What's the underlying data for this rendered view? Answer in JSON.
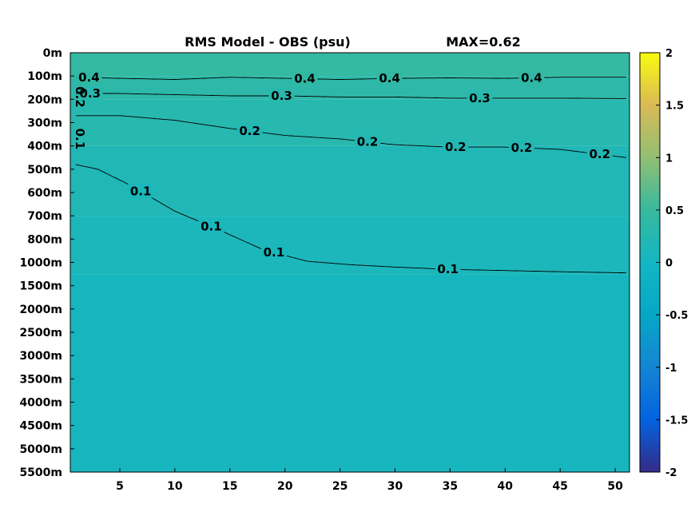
{
  "chart_data": {
    "type": "heatmap",
    "title": "RMS Model - OBS (psu)",
    "annotation": "MAX=0.62",
    "xlabel": "",
    "ylabel": "",
    "x_ticks": [
      "5",
      "10",
      "15",
      "20",
      "25",
      "30",
      "35",
      "40",
      "45",
      "50"
    ],
    "x_range": [
      0.5,
      51.3
    ],
    "depth_levels": [
      "0m",
      "100m",
      "200m",
      "300m",
      "400m",
      "500m",
      "600m",
      "700m",
      "800m",
      "1000m",
      "1500m",
      "2000m",
      "2500m",
      "3000m",
      "3500m",
      "4000m",
      "4500m",
      "5000m",
      "5500m"
    ],
    "colorbar": {
      "ticks": [
        "2",
        "1.5",
        "1",
        "0.5",
        "0",
        "-0.5",
        "-1",
        "-1.5",
        "-2"
      ],
      "range": [
        -2,
        2
      ],
      "colormap": "parula"
    },
    "contours": [
      {
        "level": 0.4,
        "label": "0.4",
        "points": [
          [
            1,
            1.05
          ],
          [
            5,
            1.1
          ],
          [
            10,
            1.15
          ],
          [
            15,
            1.05
          ],
          [
            20,
            1.1
          ],
          [
            25,
            1.15
          ],
          [
            30,
            1.1
          ],
          [
            35,
            1.08
          ],
          [
            40,
            1.1
          ],
          [
            45,
            1.05
          ],
          [
            51,
            1.05
          ]
        ],
        "label_at": [
          2.2,
          21.8,
          29.5,
          42.4
        ]
      },
      {
        "level": 0.3,
        "label": "0.3",
        "points": [
          [
            1,
            1.75
          ],
          [
            5,
            1.75
          ],
          [
            10,
            1.8
          ],
          [
            15,
            1.85
          ],
          [
            20,
            1.85
          ],
          [
            25,
            1.9
          ],
          [
            30,
            1.9
          ],
          [
            35,
            1.95
          ],
          [
            40,
            1.95
          ],
          [
            45,
            1.95
          ],
          [
            51,
            1.97
          ]
        ],
        "label_at": [
          2.3,
          19.7,
          37.7
        ]
      },
      {
        "level": 0.2,
        "label": "0.2",
        "points": [
          [
            1,
            2.7
          ],
          [
            5,
            2.7
          ],
          [
            10,
            2.9
          ],
          [
            15,
            3.25
          ],
          [
            20,
            3.55
          ],
          [
            25,
            3.7
          ],
          [
            30,
            3.95
          ],
          [
            35,
            4.05
          ],
          [
            40,
            4.05
          ],
          [
            45,
            4.15
          ],
          [
            51,
            4.5
          ]
        ],
        "label_at": [
          16.8,
          27.5,
          35.5,
          41.5,
          48.6
        ]
      },
      {
        "level": 0.1,
        "label": "0.1",
        "points": [
          [
            1,
            4.8
          ],
          [
            3,
            5.0
          ],
          [
            6,
            5.7
          ],
          [
            10,
            6.8
          ],
          [
            14,
            7.6
          ],
          [
            18,
            8.45
          ],
          [
            22,
            8.95
          ],
          [
            26,
            9.1
          ],
          [
            30,
            9.2
          ],
          [
            35,
            9.3
          ],
          [
            40,
            9.35
          ],
          [
            45,
            9.4
          ],
          [
            51,
            9.45
          ]
        ],
        "label_at": [
          6.9,
          13.3,
          19.0,
          34.8
        ]
      }
    ],
    "left_labels": [
      {
        "label": "0.2",
        "depth": 1.9
      },
      {
        "label": "0.1",
        "depth": 3.7
      }
    ],
    "field_bands": [
      {
        "depth_from": 0,
        "depth_to": 1.0,
        "value": 0.45
      },
      {
        "depth_from": 1.0,
        "depth_to": 2.0,
        "value": 0.35
      },
      {
        "depth_from": 2.0,
        "depth_to": 4.0,
        "value": 0.27
      },
      {
        "depth_from": 4.0,
        "depth_to": 7.0,
        "value": 0.17
      },
      {
        "depth_from": 7.0,
        "depth_to": 9.5,
        "value": 0.12
      },
      {
        "depth_from": 9.5,
        "depth_to": 18,
        "value": 0.05
      }
    ]
  }
}
